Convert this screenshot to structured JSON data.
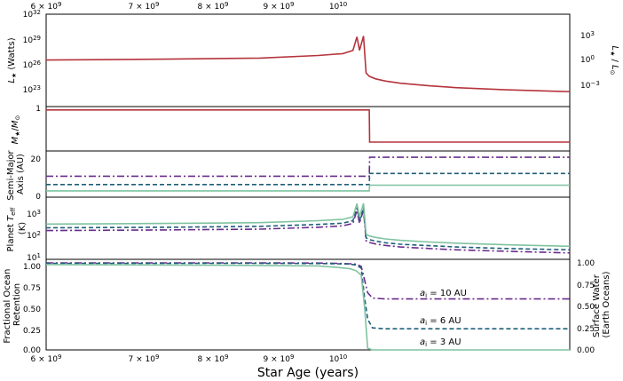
{
  "chart_data": [
    {
      "type": "line",
      "panel": "luminosity",
      "ylabel": "L★ (Watts)",
      "ylabel_right": "L★ / L⊙",
      "yscale": "log",
      "ylim": [
        1e+21,
        1e+32
      ],
      "yticks": [
        "10^32",
        "10^29",
        "10^26",
        "10^23"
      ],
      "yticks_right": [
        "10^3",
        "10^0",
        "10^-3"
      ],
      "x": [
        6000000000.0,
        8000000000.0,
        10000000000.0,
        11500000000.0,
        12200000000.0,
        12500000000.0,
        12620000000.0,
        12700000000.0,
        12820000000.0,
        12900000000.0,
        13000000000.0,
        13200000000.0,
        13500000000.0,
        14000000000.0,
        15000000000.0,
        16000000000.0,
        18000000000.0,
        21000000000.0
      ],
      "series": [
        {
          "color": "#b5343c",
          "values": [
            3.5e+26,
            4.5e+26,
            6e+26,
            1.2e+27,
            2e+27,
            5e+27,
            2e+29,
            5e+27,
            2.5e+29,
            1e+25,
            4e+24,
            2e+24,
            1.1e+24,
            6e+23,
            3e+23,
            1.8e+23,
            1e+23,
            6e+22
          ]
        }
      ]
    },
    {
      "type": "line",
      "panel": "mass",
      "ylabel": "M★/M⊙",
      "yticks": [
        "1"
      ],
      "ylim": [
        0.4,
        1.05
      ],
      "x": [
        6000000000.0,
        13000000000.0,
        13010000000.0,
        21000000000.0
      ],
      "series": [
        {
          "color": "#b5343c",
          "values": [
            1.0,
            1.0,
            0.53,
            0.53
          ]
        }
      ]
    },
    {
      "type": "line",
      "panel": "semi_major_axis",
      "ylabel": "Semi-Major Axis (AU)",
      "ylim": [
        0,
        22
      ],
      "yticks": [
        "0",
        "20"
      ],
      "x": [
        6000000000.0,
        13000000000.0,
        13010000000.0,
        21000000000.0
      ],
      "series": [
        {
          "color": "#6a2c8e",
          "dash": "8,3,2,3",
          "values": [
            10,
            10,
            19,
            19
          ]
        },
        {
          "color": "#1f5f7a",
          "dash": "5,3",
          "values": [
            6,
            6,
            11.3,
            11.3
          ]
        },
        {
          "color": "#7fc3a0",
          "dash": "",
          "values": [
            3,
            3,
            5.7,
            5.7
          ]
        }
      ]
    },
    {
      "type": "line",
      "panel": "planet_temperature",
      "ylabel": "Planet T_eff (K)",
      "yscale": "log",
      "ylim": [
        10,
        3000
      ],
      "yticks": [
        "10^3",
        "10^2",
        "10^1"
      ],
      "x": [
        6000000000.0,
        8000000000.0,
        10000000000.0,
        11500000000.0,
        12200000000.0,
        12500000000.0,
        12620000000.0,
        12700000000.0,
        12820000000.0,
        12900000000.0,
        13000000000.0,
        13200000000.0,
        13500000000.0,
        14000000000.0,
        15000000000.0,
        16000000000.0,
        18000000000.0,
        21000000000.0
      ],
      "series": [
        {
          "color": "#6a2c8e",
          "dash": "8,3,2,3",
          "values": [
            140,
            148,
            160,
            190,
            215,
            270,
            900,
            270,
            950,
            55,
            47,
            41,
            36,
            31,
            27,
            24,
            21,
            18
          ]
        },
        {
          "color": "#1f5f7a",
          "dash": "5,3",
          "values": [
            180,
            190,
            205,
            245,
            275,
            345,
            1150,
            345,
            1200,
            72,
            61,
            53,
            46,
            40,
            35,
            31,
            27,
            24
          ]
        },
        {
          "color": "#7fc3a0",
          "dash": "",
          "values": [
            255,
            270,
            290,
            345,
            390,
            490,
            1650,
            490,
            1700,
            100,
            86,
            75,
            65,
            57,
            49,
            44,
            38,
            33
          ]
        }
      ]
    },
    {
      "type": "line",
      "panel": "ocean_retention",
      "ylabel": "Fractional Ocean Retention",
      "ylabel_right": "Surface Water (Earth Oceans)",
      "xlabel": "Star Age (years)",
      "ylim": [
        0,
        1.03
      ],
      "yticks": [
        "1.00",
        "0.75",
        "0.50",
        "0.25",
        "0.00"
      ],
      "yticks_right": [
        "1.00",
        "0.75",
        "0.50",
        "0.25",
        "0.00"
      ],
      "xticks": [
        "6 × 10^9",
        "7 × 10^9",
        "8 × 10^9",
        "9 × 10^9",
        "10^10"
      ],
      "annotations": [
        "a_i = 10 AU",
        "a_i = 6 AU",
        "a_i = 3 AU"
      ],
      "x": [
        6000000000.0,
        8000000000.0,
        10000000000.0,
        11500000000.0,
        12000000000.0,
        12400000000.0,
        12600000000.0,
        12750000000.0,
        12850000000.0,
        12950000000.0,
        13100000000.0,
        13500000000.0,
        21000000000.0
      ],
      "series": [
        {
          "color": "#6a2c8e",
          "dash": "8,3,2,3",
          "values": [
            0.99,
            0.99,
            0.99,
            0.988,
            0.985,
            0.98,
            0.975,
            0.95,
            0.8,
            0.65,
            0.59,
            0.58,
            0.58
          ]
        },
        {
          "color": "#1f5f7a",
          "dash": "5,3",
          "values": [
            0.985,
            0.985,
            0.985,
            0.983,
            0.98,
            0.975,
            0.965,
            0.93,
            0.6,
            0.35,
            0.25,
            0.24,
            0.24
          ]
        },
        {
          "color": "#7fc3a0",
          "dash": "",
          "values": [
            0.97,
            0.965,
            0.96,
            0.955,
            0.94,
            0.925,
            0.9,
            0.85,
            0.5,
            0.02,
            0.0,
            0.0,
            0.0
          ]
        }
      ]
    }
  ]
}
